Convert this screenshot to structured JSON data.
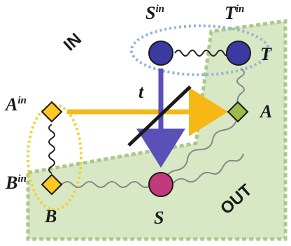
{
  "nodes": {
    "s_in": {
      "base": "S",
      "sup": "in"
    },
    "t_in": {
      "base": "T",
      "sup": "in"
    },
    "t": {
      "label": "T"
    },
    "a_in": {
      "base": "A",
      "sup": "in"
    },
    "a": {
      "label": "A"
    },
    "b_in": {
      "base": "B",
      "sup": "in"
    },
    "b": {
      "label": "B"
    },
    "s": {
      "label": "S"
    }
  },
  "regions": {
    "in_label": "IN",
    "out_label": "OUT"
  },
  "edge_label": "t",
  "colors": {
    "out_region": "#d9e8c4",
    "out_border": "#a9c98a",
    "circle_node": "#3b3aa0",
    "s_node": "#c23a7c",
    "diamond_yellow": "#ffc820",
    "diamond_green": "#9cbb4c",
    "arrow_yellow": "#f5b815",
    "arrow_blue": "#5a50b8",
    "ellipse_blue": "#8fb4d9",
    "ellipse_yellow": "#f2d030"
  }
}
